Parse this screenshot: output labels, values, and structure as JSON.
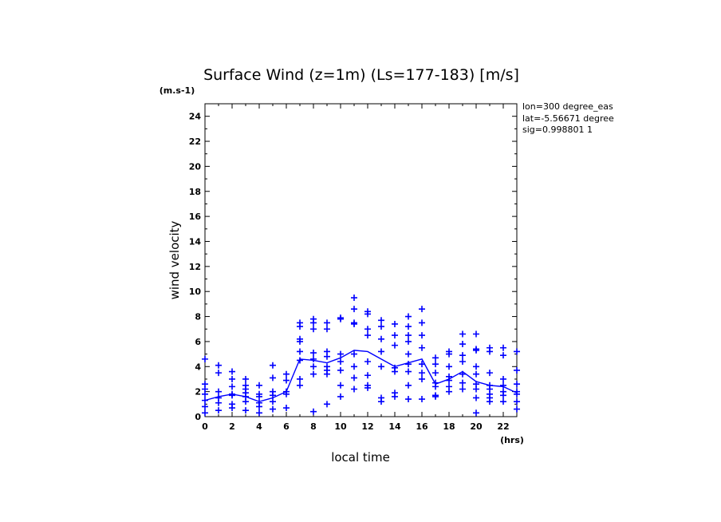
{
  "chart_data": {
    "type": "scatter",
    "title": "Surface Wind (z=1m) (Ls=177-183) [m/s]",
    "units_label": "(m.s-1)",
    "xlabel": "local time",
    "x_units_label": "(hrs)",
    "ylabel": "wind velocity",
    "xlim": [
      0,
      23
    ],
    "ylim": [
      0,
      25
    ],
    "x_ticks": [
      0,
      2,
      4,
      6,
      8,
      10,
      12,
      14,
      16,
      18,
      20,
      22
    ],
    "x_tick_labels": [
      "0",
      "2",
      "4",
      "6",
      "8",
      "10",
      "12",
      "14",
      "16",
      "18",
      "20",
      "22"
    ],
    "y_ticks": [
      0,
      2,
      4,
      6,
      8,
      10,
      12,
      14,
      16,
      18,
      20,
      22,
      24
    ],
    "y_tick_labels": [
      "0",
      "2",
      "4",
      "6",
      "8",
      "10",
      "12",
      "14",
      "16",
      "18",
      "20",
      "22",
      "24"
    ],
    "info": [
      "lon=300 degree_eas",
      "lat=-5.56671 degree",
      "sig=0.998801 1"
    ],
    "series_color": "#0000ff",
    "mean_line": {
      "x": [
        0,
        1,
        2,
        3,
        4,
        5,
        6,
        7,
        8,
        9,
        10,
        11,
        12,
        13,
        14,
        15,
        16,
        17,
        18,
        19,
        20,
        21,
        22,
        23
      ],
      "y": [
        1.3,
        1.6,
        1.8,
        1.6,
        1.2,
        1.5,
        2.0,
        4.6,
        4.5,
        4.3,
        4.7,
        5.3,
        5.2,
        4.6,
        4.0,
        4.3,
        4.6,
        2.6,
        3.0,
        3.6,
        2.8,
        2.5,
        2.4,
        1.9
      ]
    },
    "scatter_points": [
      [
        0,
        4.6
      ],
      [
        0,
        2.6
      ],
      [
        0,
        2.2
      ],
      [
        0,
        1.8
      ],
      [
        0,
        1.3
      ],
      [
        0,
        0.8
      ],
      [
        0,
        0.3
      ],
      [
        1,
        4.1
      ],
      [
        1,
        3.5
      ],
      [
        1,
        2.0
      ],
      [
        1,
        1.5
      ],
      [
        1,
        1.1
      ],
      [
        1,
        0.5
      ],
      [
        2,
        3.6
      ],
      [
        2,
        3.0
      ],
      [
        2,
        2.4
      ],
      [
        2,
        1.8
      ],
      [
        2,
        1.7
      ],
      [
        2,
        1.0
      ],
      [
        2,
        0.7
      ],
      [
        3,
        3.0
      ],
      [
        3,
        2.5
      ],
      [
        3,
        2.2
      ],
      [
        3,
        1.9
      ],
      [
        3,
        1.6
      ],
      [
        3,
        1.2
      ],
      [
        3,
        0.5
      ],
      [
        4,
        2.5
      ],
      [
        4,
        1.8
      ],
      [
        4,
        1.6
      ],
      [
        4,
        1.1
      ],
      [
        4,
        0.8
      ],
      [
        4,
        0.3
      ],
      [
        5,
        4.1
      ],
      [
        5,
        3.1
      ],
      [
        5,
        2.0
      ],
      [
        5,
        1.7
      ],
      [
        5,
        1.2
      ],
      [
        5,
        0.6
      ],
      [
        6,
        3.4
      ],
      [
        6,
        2.9
      ],
      [
        6,
        2.0
      ],
      [
        6,
        1.8
      ],
      [
        6,
        0.7
      ],
      [
        7,
        7.5
      ],
      [
        7,
        7.2
      ],
      [
        7,
        6.2
      ],
      [
        7,
        6.0
      ],
      [
        7,
        5.2
      ],
      [
        7,
        4.5
      ],
      [
        7,
        3.0
      ],
      [
        7,
        2.5
      ],
      [
        8,
        7.8
      ],
      [
        8,
        7.5
      ],
      [
        8,
        7.0
      ],
      [
        8,
        5.1
      ],
      [
        8,
        4.6
      ],
      [
        8,
        4.0
      ],
      [
        8,
        3.4
      ],
      [
        8,
        0.4
      ],
      [
        9,
        7.5
      ],
      [
        9,
        7.0
      ],
      [
        9,
        5.2
      ],
      [
        9,
        4.8
      ],
      [
        9,
        4.0
      ],
      [
        9,
        3.7
      ],
      [
        9,
        3.4
      ],
      [
        9,
        1.0
      ],
      [
        10,
        7.9
      ],
      [
        10,
        7.8
      ],
      [
        10,
        5.0
      ],
      [
        10,
        4.4
      ],
      [
        10,
        3.7
      ],
      [
        10,
        2.5
      ],
      [
        10,
        1.6
      ],
      [
        11,
        9.5
      ],
      [
        11,
        8.6
      ],
      [
        11,
        7.5
      ],
      [
        11,
        7.4
      ],
      [
        11,
        5.0
      ],
      [
        11,
        4.0
      ],
      [
        11,
        3.1
      ],
      [
        11,
        2.2
      ],
      [
        12,
        8.4
      ],
      [
        12,
        8.2
      ],
      [
        12,
        7.0
      ],
      [
        12,
        6.5
      ],
      [
        12,
        4.4
      ],
      [
        12,
        3.3
      ],
      [
        12,
        2.5
      ],
      [
        12,
        2.3
      ],
      [
        13,
        7.7
      ],
      [
        13,
        7.2
      ],
      [
        13,
        6.2
      ],
      [
        13,
        5.2
      ],
      [
        13,
        4.0
      ],
      [
        13,
        1.5
      ],
      [
        13,
        1.2
      ],
      [
        14,
        7.4
      ],
      [
        14,
        6.5
      ],
      [
        14,
        5.7
      ],
      [
        14,
        3.9
      ],
      [
        14,
        3.6
      ],
      [
        14,
        1.9
      ],
      [
        14,
        1.6
      ],
      [
        15,
        8.0
      ],
      [
        15,
        7.2
      ],
      [
        15,
        6.5
      ],
      [
        15,
        6.0
      ],
      [
        15,
        5.0
      ],
      [
        15,
        4.2
      ],
      [
        15,
        3.6
      ],
      [
        15,
        2.5
      ],
      [
        15,
        1.4
      ],
      [
        16,
        8.6
      ],
      [
        16,
        7.5
      ],
      [
        16,
        6.5
      ],
      [
        16,
        5.5
      ],
      [
        16,
        4.2
      ],
      [
        16,
        3.5
      ],
      [
        16,
        3.0
      ],
      [
        16,
        1.4
      ],
      [
        17,
        4.7
      ],
      [
        17,
        4.2
      ],
      [
        17,
        3.5
      ],
      [
        17,
        2.7
      ],
      [
        17,
        2.4
      ],
      [
        17,
        1.7
      ],
      [
        17,
        1.6
      ],
      [
        18,
        5.2
      ],
      [
        18,
        5.0
      ],
      [
        18,
        4.0
      ],
      [
        18,
        3.2
      ],
      [
        18,
        2.9
      ],
      [
        18,
        2.4
      ],
      [
        18,
        2.0
      ],
      [
        19,
        6.6
      ],
      [
        19,
        5.8
      ],
      [
        19,
        4.9
      ],
      [
        19,
        4.4
      ],
      [
        19,
        3.4
      ],
      [
        19,
        2.7
      ],
      [
        19,
        2.2
      ],
      [
        20,
        6.6
      ],
      [
        20,
        5.4
      ],
      [
        20,
        5.3
      ],
      [
        20,
        4.0
      ],
      [
        20,
        3.4
      ],
      [
        20,
        2.6
      ],
      [
        20,
        2.2
      ],
      [
        20,
        1.5
      ],
      [
        20,
        0.3
      ],
      [
        21,
        5.5
      ],
      [
        21,
        5.2
      ],
      [
        21,
        3.5
      ],
      [
        21,
        2.5
      ],
      [
        21,
        2.2
      ],
      [
        21,
        1.8
      ],
      [
        21,
        1.5
      ],
      [
        21,
        1.2
      ],
      [
        22,
        5.5
      ],
      [
        22,
        4.9
      ],
      [
        22,
        3.0
      ],
      [
        22,
        2.5
      ],
      [
        22,
        2.0
      ],
      [
        22,
        1.7
      ],
      [
        22,
        1.2
      ],
      [
        23,
        5.2
      ],
      [
        23,
        3.7
      ],
      [
        23,
        2.6
      ],
      [
        23,
        2.0
      ],
      [
        23,
        1.8
      ],
      [
        23,
        1.2
      ],
      [
        23,
        0.6
      ]
    ]
  }
}
